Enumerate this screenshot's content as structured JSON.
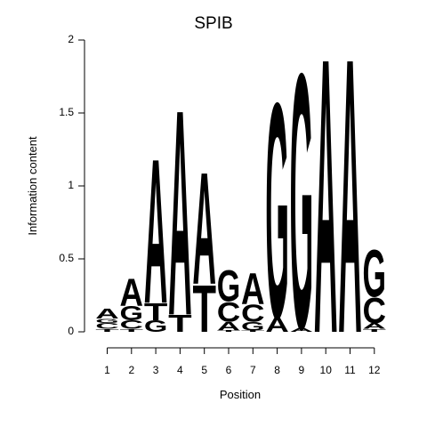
{
  "chart_data": {
    "type": "sequence_logo",
    "title": "SPIB",
    "xlabel": "Position",
    "ylabel": "Information content",
    "ylim": [
      0,
      2
    ],
    "yticks": [
      "0",
      "0.5",
      "1",
      "1.5",
      "2"
    ],
    "ytick_values": [
      0,
      0.5,
      1,
      1.5,
      2
    ],
    "positions": [
      "1",
      "2",
      "3",
      "4",
      "5",
      "6",
      "7",
      "8",
      "9",
      "10",
      "11",
      "12"
    ],
    "colors": {
      "A": "#00ee00",
      "C": "#0000ee",
      "G": "#ffa500",
      "T": "#ff0000"
    },
    "stacks": [
      [
        {
          "letter": "T",
          "height": 0.02
        },
        {
          "letter": "C",
          "height": 0.04
        },
        {
          "letter": "G",
          "height": 0.03
        },
        {
          "letter": "A",
          "height": 0.07
        }
      ],
      [
        {
          "letter": "T",
          "height": 0.02
        },
        {
          "letter": "C",
          "height": 0.06
        },
        {
          "letter": "G",
          "height": 0.1
        },
        {
          "letter": "A",
          "height": 0.19
        }
      ],
      [
        {
          "letter": "G",
          "height": 0.08
        },
        {
          "letter": "T",
          "height": 0.12
        },
        {
          "letter": "A",
          "height": 1.02
        }
      ],
      [
        {
          "letter": "T",
          "height": 0.12
        },
        {
          "letter": "A",
          "height": 1.45
        }
      ],
      [
        {
          "letter": "T",
          "height": 0.33
        },
        {
          "letter": "A",
          "height": 0.79
        }
      ],
      [
        {
          "letter": "T",
          "height": 0.01
        },
        {
          "letter": "A",
          "height": 0.06
        },
        {
          "letter": "C",
          "height": 0.14
        },
        {
          "letter": "G",
          "height": 0.22
        }
      ],
      [
        {
          "letter": "T",
          "height": 0.01
        },
        {
          "letter": "G",
          "height": 0.06
        },
        {
          "letter": "C",
          "height": 0.12
        },
        {
          "letter": "A",
          "height": 0.22
        }
      ],
      [
        {
          "letter": "A",
          "height": 0.1
        },
        {
          "letter": "G",
          "height": 1.52
        }
      ],
      [
        {
          "letter": "A",
          "height": 0.03
        },
        {
          "letter": "G",
          "height": 1.8
        }
      ],
      [
        {
          "letter": "A",
          "height": 1.94
        }
      ],
      [
        {
          "letter": "A",
          "height": 1.94
        }
      ],
      [
        {
          "letter": "T",
          "height": 0.02
        },
        {
          "letter": "A",
          "height": 0.04
        },
        {
          "letter": "C",
          "height": 0.18
        },
        {
          "letter": "G",
          "height": 0.33
        }
      ]
    ]
  }
}
